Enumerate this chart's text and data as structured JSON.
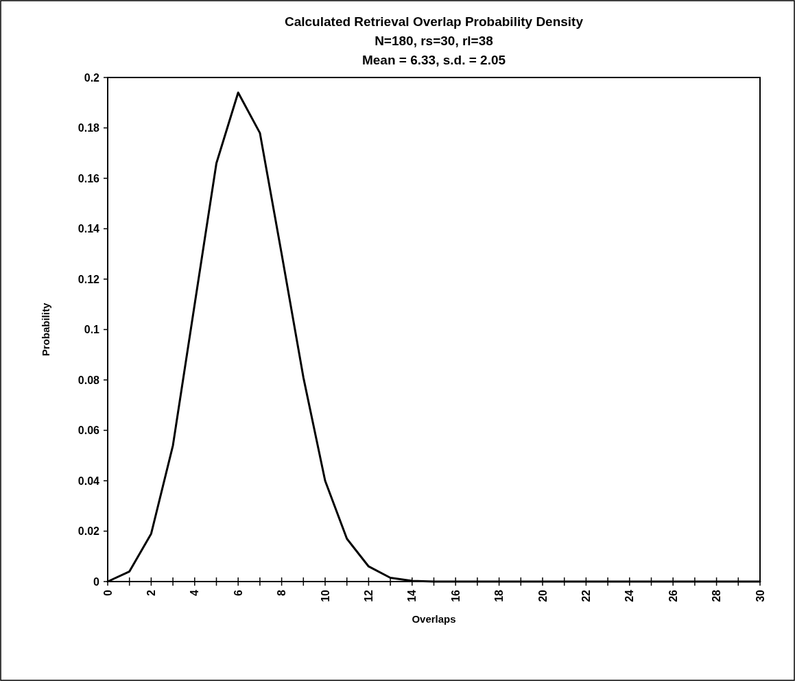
{
  "chart_data": {
    "type": "line",
    "title": "Calculated Retrieval Overlap Probability Density",
    "subtitle": "N=180, rs=30, rl=38\nMean = 6.33, s.d. = 2.05",
    "xlabel": "Overlaps",
    "ylabel": "Probability",
    "x": [
      0,
      1,
      2,
      3,
      4,
      5,
      6,
      7,
      8,
      9,
      10,
      11,
      12,
      13,
      14,
      15,
      16,
      17,
      18,
      19,
      20,
      21,
      22,
      23,
      24,
      25,
      26,
      27,
      28,
      29,
      30
    ],
    "series": [
      {
        "color": "#000000",
        "values": [
          0,
          0.004,
          0.019,
          0.054,
          0.11,
          0.166,
          0.194,
          0.178,
          0.13,
          0.081,
          0.04,
          0.017,
          0.006,
          0.0015,
          0.0003,
          0,
          0,
          0,
          0,
          0,
          0,
          0,
          0,
          0,
          0,
          0,
          0,
          0,
          0,
          0,
          0
        ]
      }
    ],
    "xlim": [
      0,
      30
    ],
    "xticks": [
      0,
      {
        "value": 1,
        "label": null
      },
      2,
      {
        "value": 3,
        "label": null
      },
      4,
      {
        "value": 5,
        "label": null
      },
      6,
      {
        "value": 7,
        "label": null
      },
      8,
      {
        "value": 9,
        "label": null
      },
      10,
      {
        "value": 11,
        "label": null
      },
      12,
      {
        "value": 13,
        "label": null
      },
      14,
      {
        "value": 15,
        "label": null
      },
      16,
      {
        "value": 17,
        "label": null
      },
      18,
      {
        "value": 19,
        "label": null
      },
      20,
      {
        "value": 21,
        "label": null
      },
      22,
      {
        "value": 23,
        "label": null
      },
      24,
      {
        "value": 25,
        "label": null
      },
      26,
      {
        "value": 27,
        "label": null
      },
      28,
      {
        "value": 29,
        "label": null
      },
      30
    ],
    "ylim": [
      0,
      0.2
    ],
    "yticks": [
      0,
      0.02,
      0.04,
      0.06,
      0.08,
      0.1,
      0.12,
      0.14,
      0.16,
      0.18,
      0.2
    ],
    "marker": "none",
    "line_style": "solid"
  }
}
